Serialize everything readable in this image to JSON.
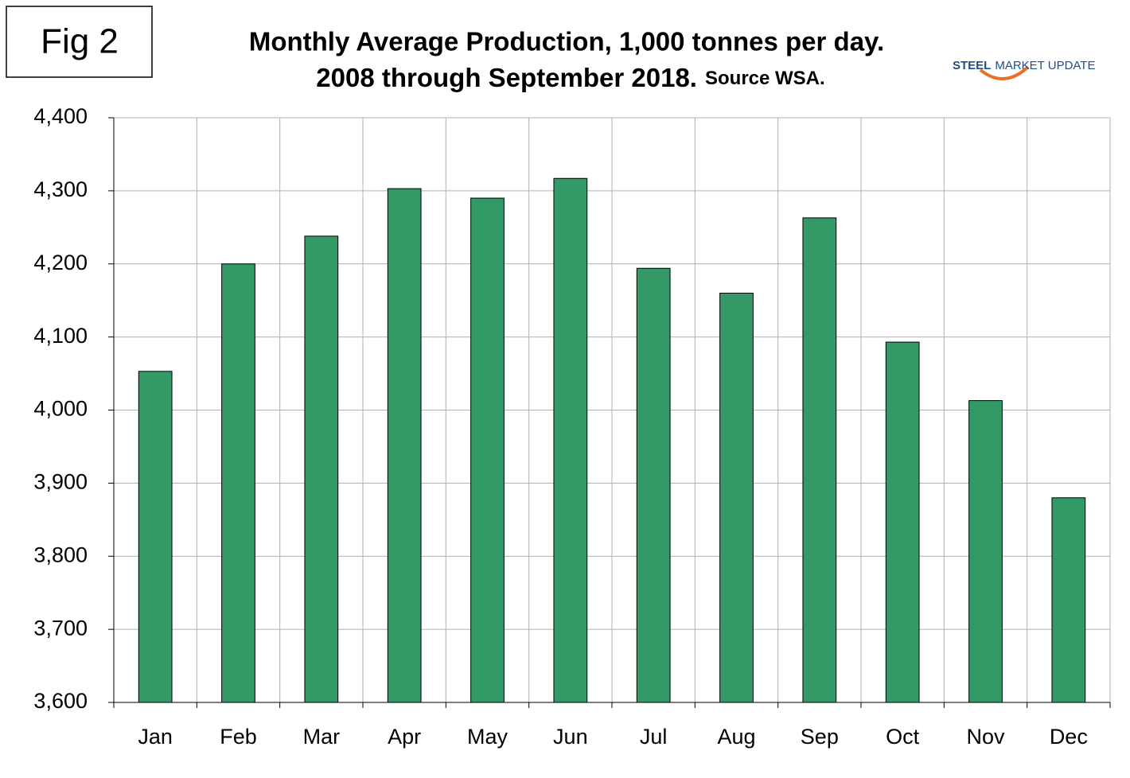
{
  "chart_data": {
    "type": "bar",
    "figure_label": "Fig 2",
    "title": "Monthly Average Production, 1,000 tonnes per day.",
    "subtitle": "2008 through September 2018.",
    "source": "Source WSA.",
    "logo": {
      "bold": "STEEL",
      "text": "MARKET UPDATE"
    },
    "categories": [
      "Jan",
      "Feb",
      "Mar",
      "Apr",
      "May",
      "Jun",
      "Jul",
      "Aug",
      "Sep",
      "Oct",
      "Nov",
      "Dec"
    ],
    "values": [
      4053,
      4200,
      4238,
      4303,
      4290,
      4317,
      4194,
      4160,
      4263,
      4093,
      4013,
      3880
    ],
    "color": "#339966",
    "ylim": [
      3600,
      4400
    ],
    "yticks": [
      {
        "value": 3600,
        "label": "3,600"
      },
      {
        "value": 3700,
        "label": "3,700"
      },
      {
        "value": 3800,
        "label": "3,800"
      },
      {
        "value": 3900,
        "label": "3,900"
      },
      {
        "value": 4000,
        "label": "4,000"
      },
      {
        "value": 4100,
        "label": "4,100"
      },
      {
        "value": 4200,
        "label": "4,200"
      },
      {
        "value": 4300,
        "label": "4,300"
      },
      {
        "value": 4400,
        "label": "4,400"
      }
    ],
    "grid": true
  }
}
